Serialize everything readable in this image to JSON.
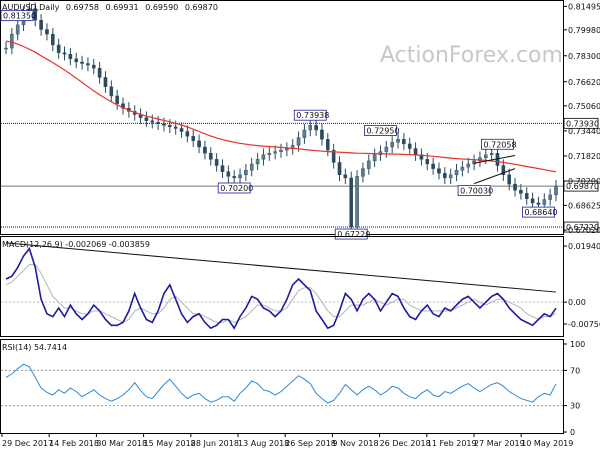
{
  "header": {
    "symbol": "AUDUSD,Daily",
    "open": "0.69758",
    "high": "0.69931",
    "low": "0.69590",
    "close": "0.69870"
  },
  "watermark": "ActionForex.com",
  "chart_data": [
    {
      "type": "line",
      "panel": "price",
      "title": "AUDUSD,Daily 0.69758 0.69931 0.69590 0.69870",
      "x_ticks": [
        "29 Dec 2017",
        "14 Feb 2018",
        "30 Mar 2018",
        "15 May 2018",
        "28 Jun 2018",
        "13 Aug 2018",
        "26 Sep 2018",
        "9 Nov 2018",
        "26 Dec 2018",
        "11 Feb 2019",
        "27 Mar 2019",
        "10 May 2019"
      ],
      "y_ticks": [
        "0.81495",
        "0.79980",
        "0.78300",
        "0.76620",
        "0.75060",
        "0.73440",
        "0.71820",
        "0.70200",
        "0.68625",
        "0.67020"
      ],
      "ylim": [
        0.669,
        0.8165
      ],
      "series": [
        {
          "values": [
            0.788,
            0.797,
            0.803,
            0.811,
            0.8135,
            0.806,
            0.8,
            0.797,
            0.79,
            0.785,
            0.784,
            0.781,
            0.779,
            0.778,
            0.777,
            0.775,
            0.769,
            0.763,
            0.757,
            0.752,
            0.749,
            0.747,
            0.745,
            0.743,
            0.741,
            0.74,
            0.739,
            0.738,
            0.737,
            0.736,
            0.734,
            0.731,
            0.728,
            0.724,
            0.72,
            0.716,
            0.712,
            0.708,
            0.705,
            0.704,
            0.706,
            0.709,
            0.713,
            0.716,
            0.719,
            0.72,
            0.721,
            0.722,
            0.723,
            0.725,
            0.73,
            0.735,
            0.738,
            0.735,
            0.729,
            0.722,
            0.714,
            0.706,
            0.704,
            0.6722,
            0.705,
            0.71,
            0.715,
            0.719,
            0.721,
            0.724,
            0.727,
            0.729,
            0.726,
            0.723,
            0.719,
            0.716,
            0.713,
            0.71,
            0.707,
            0.704,
            0.706,
            0.709,
            0.711,
            0.713,
            0.715,
            0.717,
            0.719,
            0.72,
            0.712,
            0.706,
            0.7,
            0.696,
            0.694,
            0.6905,
            0.6878,
            0.6868,
            0.69,
            0.693,
            0.6987
          ],
          "style": "candles"
        },
        {
          "name": "",
          "values": [
            0.7925,
            0.7918,
            0.7905,
            0.789,
            0.7872,
            0.7853,
            0.783,
            0.7808,
            0.7786,
            0.7762,
            0.7738,
            0.7712,
            0.7685,
            0.7658,
            0.763,
            0.7603,
            0.7578,
            0.7554,
            0.7532,
            0.7512,
            0.7494,
            0.7478,
            0.7464,
            0.7451,
            0.744,
            0.743,
            0.7421,
            0.7412,
            0.7403,
            0.7393,
            0.7382,
            0.7369,
            0.7355,
            0.734,
            0.7325,
            0.7311,
            0.7299,
            0.7288,
            0.7279,
            0.7271,
            0.7264,
            0.7258,
            0.7253,
            0.7249,
            0.7246,
            0.7243,
            0.724,
            0.7237,
            0.7234,
            0.7231,
            0.7228,
            0.7224,
            0.722,
            0.7216,
            0.7213,
            0.721,
            0.7208,
            0.7206,
            0.7204,
            0.7202,
            0.72,
            0.7199,
            0.7198,
            0.7197,
            0.7196,
            0.7195,
            0.7194,
            0.7193,
            0.7192,
            0.719,
            0.7188,
            0.7186,
            0.7183,
            0.718,
            0.7176,
            0.7172,
            0.7168,
            0.7165,
            0.7162,
            0.716,
            0.7158,
            0.7156,
            0.7153,
            0.7149,
            0.7145,
            0.714,
            0.7134,
            0.7128,
            0.7121,
            0.7114,
            0.7107,
            0.71,
            0.7093,
            0.7086,
            0.708
          ],
          "color": "#e8332a"
        }
      ],
      "annotations": [
        "0.81350",
        "0.73938",
        "0.70200",
        "0.67220",
        "0.72950",
        "0.70030",
        "0.72058",
        "0.68640"
      ],
      "levels": [
        {
          "value": 0.7393,
          "label": "0.73930"
        },
        {
          "value": 0.6987,
          "label": "0.69870"
        },
        {
          "value": 0.6722,
          "label": "0.67220"
        }
      ],
      "trendlines": [
        {
          "from": [
            80,
            0.7003
          ],
          "to": [
            87,
            0.71
          ]
        },
        {
          "from": [
            80,
            0.7135
          ],
          "to": [
            87,
            0.7185
          ]
        }
      ]
    },
    {
      "type": "line",
      "panel": "macd",
      "title": "MACD(12,26,9) -0.002069 -0.003859",
      "ylim": [
        -0.011,
        0.0215
      ],
      "y_ticks": [
        "0.01940",
        "0.00",
        "-0.00756"
      ],
      "series": [
        {
          "values": [
            0.008,
            0.009,
            0.012,
            0.016,
            0.0185,
            0.012,
            0.001,
            -0.004,
            -0.005,
            -0.002,
            -0.005,
            -0.001,
            -0.004,
            -0.006,
            -0.004,
            -0.001,
            -0.003,
            -0.006,
            -0.008,
            -0.008,
            -0.007,
            -0.003,
            0.003,
            -0.002,
            -0.006,
            -0.007,
            -0.003,
            0.003,
            0.006,
            0.001,
            -0.004,
            -0.007,
            -0.005,
            -0.004,
            -0.007,
            -0.009,
            -0.008,
            -0.006,
            -0.006,
            -0.009,
            -0.005,
            -0.002,
            0.002,
            0.001,
            -0.002,
            -0.003,
            -0.005,
            -0.003,
            0.001,
            0.006,
            0.008,
            0.006,
            0.004,
            -0.003,
            -0.006,
            -0.009,
            -0.008,
            -0.003,
            0.003,
            0.001,
            -0.003,
            0.001,
            0.003,
            0.001,
            -0.003,
            0.0,
            0.003,
            0.002,
            -0.002,
            -0.005,
            -0.006,
            -0.003,
            -0.001,
            -0.004,
            -0.005,
            -0.002,
            -0.003,
            -0.001,
            0.001,
            0.002,
            0.0,
            -0.002,
            0.0,
            0.002,
            0.003,
            0.001,
            -0.002,
            -0.004,
            -0.006,
            -0.007,
            -0.008,
            -0.006,
            -0.004,
            -0.005,
            -0.002069
          ],
          "color": "#1c1ca0"
        },
        {
          "values": [
            0.006,
            0.007,
            0.009,
            0.011,
            0.013,
            0.013,
            0.01,
            0.006,
            0.002,
            0.0,
            -0.002,
            -0.002,
            -0.003,
            -0.004,
            -0.004,
            -0.003,
            -0.003,
            -0.004,
            -0.005,
            -0.006,
            -0.007,
            -0.006,
            -0.003,
            -0.002,
            -0.003,
            -0.004,
            -0.004,
            -0.002,
            0.001,
            0.002,
            0.0,
            -0.002,
            -0.004,
            -0.004,
            -0.005,
            -0.006,
            -0.007,
            -0.007,
            -0.006,
            -0.007,
            -0.006,
            -0.005,
            -0.003,
            -0.001,
            -0.001,
            -0.002,
            -0.003,
            -0.003,
            -0.002,
            0.001,
            0.004,
            0.005,
            0.005,
            0.003,
            0.0,
            -0.003,
            -0.005,
            -0.005,
            -0.003,
            -0.001,
            -0.001,
            -0.001,
            0.0,
            0.001,
            0.0,
            -0.001,
            0.0,
            0.001,
            0.001,
            -0.001,
            -0.002,
            -0.003,
            -0.003,
            -0.003,
            -0.003,
            -0.003,
            -0.003,
            -0.002,
            -0.001,
            0.0,
            0.001,
            0.0,
            -0.001,
            0.0,
            0.001,
            0.001,
            0.0,
            -0.001,
            -0.002,
            -0.004,
            -0.005,
            -0.006,
            -0.005,
            -0.005,
            -0.003859
          ],
          "color": "#b4b4b4"
        }
      ],
      "trendline": {
        "from": [
          0,
          0.0205
        ],
        "to": [
          94,
          0.0035
        ]
      }
    },
    {
      "type": "line",
      "panel": "rsi",
      "title": "RSI(14) 54.7414",
      "ylim": [
        0,
        100
      ],
      "y_ticks": [
        "100",
        "70",
        "30",
        "0"
      ],
      "levels": [
        70,
        30
      ],
      "series": [
        {
          "values": [
            62,
            66,
            72,
            77,
            74,
            62,
            50,
            45,
            42,
            48,
            44,
            50,
            46,
            40,
            44,
            48,
            42,
            38,
            35,
            38,
            42,
            48,
            56,
            47,
            40,
            38,
            46,
            54,
            60,
            52,
            44,
            38,
            42,
            44,
            38,
            34,
            36,
            40,
            40,
            35,
            44,
            50,
            58,
            55,
            48,
            46,
            42,
            46,
            52,
            58,
            64,
            60,
            55,
            44,
            38,
            33,
            36,
            44,
            54,
            48,
            42,
            48,
            52,
            48,
            42,
            46,
            52,
            50,
            44,
            40,
            38,
            44,
            48,
            42,
            40,
            46,
            44,
            48,
            52,
            55,
            50,
            46,
            50,
            54,
            56,
            52,
            46,
            42,
            38,
            36,
            34,
            40,
            44,
            42,
            54.74
          ],
          "color": "#2f88d8"
        }
      ]
    }
  ]
}
